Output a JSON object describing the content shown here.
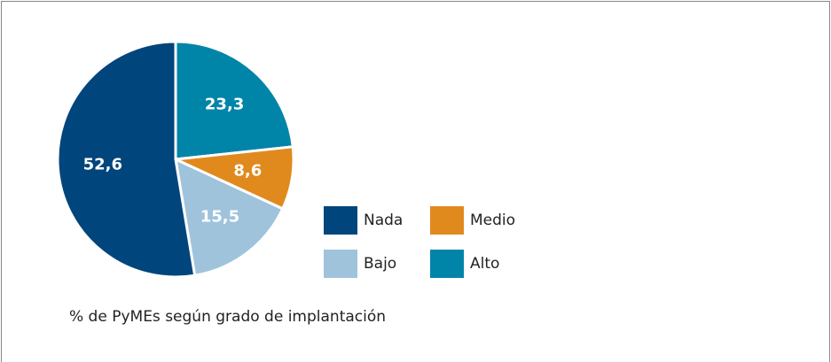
{
  "chart_data": {
    "type": "pie",
    "caption": "% de PyMEs según grado de implantación",
    "categories": [
      "Alto",
      "Medio",
      "Bajo",
      "Nada"
    ],
    "values": [
      23.3,
      8.6,
      15.5,
      52.6
    ],
    "value_labels": [
      "23,3",
      "8,6",
      "15,5",
      "52,6"
    ],
    "colors": [
      "#0085a8",
      "#e08a1e",
      "#a0c3dc",
      "#00457c"
    ],
    "legend": "right"
  }
}
